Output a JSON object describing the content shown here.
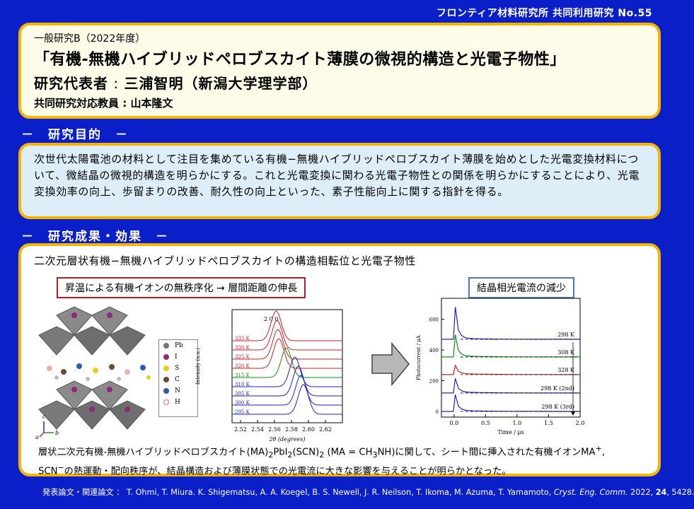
{
  "header": {
    "tag": "フロンティア材料研究所 共同利用研究 No.55"
  },
  "title_block": {
    "category": "一般研究B（2022年度）",
    "title": "「有機-無機ハイブリッドペロブスカイト薄膜の微視的構造と光電子物性」",
    "pi_label": "研究代表者",
    "pi_colon": " : ",
    "pi_name": "三浦智明（新潟大学理学部）",
    "collab_label": "共同研究対応教員",
    "collab_colon": " : ",
    "collab_name": "山本隆文"
  },
  "purpose": {
    "heading": "－　研究目的　－",
    "text": "次世代太陽電池の材料として注目を集めている有機−無機ハイブリッドペロブスカイト薄膜を始めとした光電変換材料について、微結晶の微視的構造を明らかにする。これと光電変換に関わる光電子物性との関係を明らかにすることにより、光電変換効率の向上、歩留まりの改善、耐久性の向上といった、素子性能向上に関する指針を得る。"
  },
  "results": {
    "heading": "－　研究成果・効果　－",
    "subtitle": "二次元層状有機−無機ハイブリッドペロブスカイトの構造相転位と光電子物性",
    "box_left": "昇温による有機イオンの無秩序化 → 層間距離の伸長",
    "box_right": "結晶相光電流の減少",
    "legend": [
      "Pb",
      "I",
      "S",
      "C",
      "N",
      "H"
    ],
    "axis_letters": {
      "c": "c",
      "a": "a",
      "b": "b"
    },
    "caption": {
      "l1_a": "層状二次元有機-無機ハイブリッドペロブスカイト(MA)",
      "l1_sub1": "2",
      "l1_b": "PbI",
      "l1_sub2": "2",
      "l1_c": "(SCN)",
      "l1_sub3": "2",
      "l1_d": " (MA = CH",
      "l1_sub4": "3",
      "l1_e": "NH)に関して、シート間に挿入された有機イオンMA",
      "l1_sup1": "+",
      "l1_f": ",",
      "l2_a": "SCN",
      "l2_sup": "−",
      "l2_b": "の熱運動・配向秩序が、結晶構造および薄膜状態での光電流に大きな影響を与えることが明らかとなった。"
    }
  },
  "chart_data": [
    {
      "type": "line",
      "title": "",
      "xlabel": "2θ (degrees)",
      "ylabel": "Intensity (a.u.)",
      "xlim": [
        2.51,
        2.64
      ],
      "x_ticks": [
        "2.52",
        "2.54",
        "2.56",
        "2.58",
        "2.60",
        "2.62"
      ],
      "peak_label": "2 0 0",
      "series": [
        {
          "name": "335 K",
          "color": "#d02020",
          "peak": 2.562
        },
        {
          "name": "330 K",
          "color": "#d02020",
          "peak": 2.563
        },
        {
          "name": "325 K",
          "color": "#d02020",
          "peak": 2.564
        },
        {
          "name": "320 K",
          "color": "#d02020",
          "peak": 2.565
        },
        {
          "name": "315 K",
          "color": "#109010",
          "peak": 2.574
        },
        {
          "name": "310 K",
          "color": "#2020c0",
          "peak": 2.584
        },
        {
          "name": "305 K",
          "color": "#2020c0",
          "peak": 2.588
        },
        {
          "name": "300 K",
          "color": "#2020c0",
          "peak": 2.591
        },
        {
          "name": "295 K",
          "color": "#2020c0",
          "peak": 2.594
        }
      ]
    },
    {
      "type": "line",
      "title": "",
      "xlabel": "Time / μs",
      "ylabel": "Photocurrent / μA",
      "xlim": [
        -0.2,
        2.0
      ],
      "ylim": [
        0,
        700
      ],
      "x_ticks": [
        "0.0",
        "0.5",
        "1.0",
        "1.5",
        "2.0"
      ],
      "y_ticks": [
        "0",
        "200",
        "400",
        "600"
      ],
      "series": [
        {
          "name": "298 K",
          "color": "#2020c0",
          "baseline": 470,
          "spike": 680
        },
        {
          "name": "308 K",
          "color": "#109010",
          "baseline": 355,
          "spike": 500
        },
        {
          "name": "328 K",
          "color": "#d02020",
          "baseline": 240,
          "spike": 300
        },
        {
          "name": "298 K (2nd)",
          "color": "#2020c0",
          "baseline": 120,
          "spike": 215
        },
        {
          "name": "298 K (3rd)",
          "color": "#2020c0",
          "baseline": 0,
          "spike": 110
        }
      ]
    }
  ],
  "footer": {
    "label": "発表論文・関連論文 ：",
    "authors": " T. Ohmi, T. Miura. K. Shigematsu, A. A. Koegel, B. S. Newell, J. R. Neilson, T. Ikoma, M. Azuma, T. Yamamoto, ",
    "journal": "Cryst. Eng. Comm.",
    "year": " 2022, ",
    "volume": "24",
    "pages": ", 5428."
  }
}
